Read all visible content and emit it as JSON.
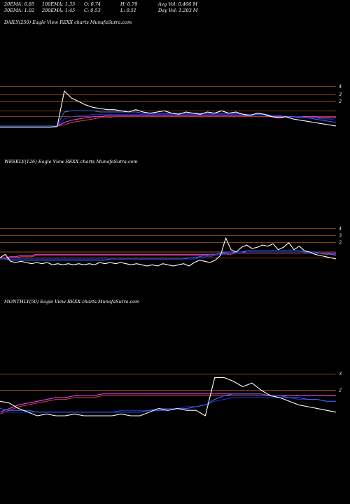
{
  "header": {
    "row1": [
      "20EMA: 0.85",
      "100EMA: 1.35",
      "O: 0.74",
      "H: 0.79",
      "Avg Vol: 0.466  M"
    ],
    "row2": [
      "30EMA: 1.02",
      "200EMA: 1.45",
      "C: 0.53",
      "L: 0.51",
      "Day Vol: 1.203 M"
    ]
  },
  "panels": {
    "daily": {
      "title": "DAILY(250) Eagle   View  REXX  charts MunafaSutra.com"
    },
    "weekly": {
      "title": "WEEKLY(126) Eagle   View  REXX  charts MunafaSutra.com"
    },
    "monthly": {
      "title": "MONTHLY(50) Eagle   View  REXX  charts MunafaSutra.com"
    }
  },
  "colors": {
    "price": "#ffffff",
    "ema_a": "#3a6cff",
    "ema_b": "#2233cc",
    "ema_c": "#ff44ff",
    "ema_d": "#cc4444",
    "hline": "#cc6622"
  },
  "chart_data": [
    {
      "type": "line",
      "title": "DAILY(250) Eagle   View  REXX  charts MunafaSutra.com",
      "yticks": [
        "4",
        "3",
        "2"
      ],
      "ylim": [
        0,
        6
      ],
      "hlines": [
        4.6,
        3.9,
        3.3,
        2.5,
        2.0
      ],
      "series": [
        {
          "role": "price",
          "values": [
            1.1,
            1.1,
            1.1,
            1.1,
            1.1,
            1.1,
            1.1,
            1.1,
            1.15,
            4.2,
            3.6,
            3.3,
            3.0,
            2.8,
            2.7,
            2.6,
            2.6,
            2.5,
            2.4,
            2.6,
            2.4,
            2.3,
            2.4,
            2.5,
            2.3,
            2.2,
            2.4,
            2.3,
            2.2,
            2.4,
            2.3,
            2.5,
            2.3,
            2.4,
            2.2,
            2.1,
            2.3,
            2.2,
            2.0,
            1.9,
            2.0,
            1.8,
            1.7,
            1.6,
            1.5,
            1.4,
            1.3,
            1.2
          ]
        },
        {
          "role": "ema_a",
          "values": [
            1.2,
            1.2,
            1.2,
            1.2,
            1.2,
            1.2,
            1.2,
            1.2,
            1.2,
            2.4,
            2.5,
            2.5,
            2.5,
            2.5,
            2.4,
            2.4,
            2.4,
            2.4,
            2.4,
            2.4,
            2.3,
            2.3,
            2.3,
            2.3,
            2.3,
            2.3,
            2.3,
            2.3,
            2.3,
            2.3,
            2.3,
            2.3,
            2.3,
            2.3,
            2.2,
            2.2,
            2.2,
            2.2,
            2.1,
            2.1,
            2.0,
            2.0,
            1.9,
            1.9,
            1.8,
            1.7,
            1.6,
            1.5
          ]
        },
        {
          "role": "ema_b",
          "values": [
            1.2,
            1.2,
            1.2,
            1.2,
            1.2,
            1.2,
            1.2,
            1.2,
            1.2,
            1.8,
            2.0,
            2.1,
            2.1,
            2.2,
            2.2,
            2.2,
            2.2,
            2.2,
            2.2,
            2.2,
            2.2,
            2.2,
            2.2,
            2.2,
            2.2,
            2.2,
            2.2,
            2.2,
            2.2,
            2.2,
            2.2,
            2.2,
            2.2,
            2.2,
            2.2,
            2.1,
            2.1,
            2.1,
            2.1,
            2.1,
            2.0,
            2.0,
            2.0,
            1.9,
            1.9,
            1.8,
            1.8,
            1.7
          ]
        },
        {
          "role": "ema_c",
          "values": [
            1.2,
            1.2,
            1.2,
            1.2,
            1.2,
            1.2,
            1.2,
            1.2,
            1.2,
            1.5,
            1.7,
            1.8,
            1.9,
            2.0,
            2.0,
            2.1,
            2.1,
            2.1,
            2.1,
            2.1,
            2.1,
            2.1,
            2.1,
            2.1,
            2.1,
            2.1,
            2.1,
            2.1,
            2.1,
            2.1,
            2.1,
            2.1,
            2.1,
            2.1,
            2.1,
            2.1,
            2.1,
            2.1,
            2.0,
            2.0,
            2.0,
            2.0,
            2.0,
            2.0,
            2.0,
            1.9,
            1.9,
            1.9
          ]
        },
        {
          "role": "ema_d",
          "values": [
            1.2,
            1.2,
            1.2,
            1.2,
            1.2,
            1.2,
            1.2,
            1.2,
            1.2,
            1.3,
            1.5,
            1.6,
            1.7,
            1.8,
            1.9,
            1.9,
            2.0,
            2.0,
            2.0,
            2.0,
            2.0,
            2.0,
            2.0,
            2.0,
            2.0,
            2.0,
            2.0,
            2.0,
            2.0,
            2.0,
            2.0,
            2.0,
            2.0,
            2.0,
            2.0,
            2.0,
            2.0,
            2.0,
            2.0,
            2.0,
            2.0,
            2.0,
            2.0,
            2.0,
            2.0,
            2.0,
            2.0,
            2.0
          ]
        }
      ]
    },
    {
      "type": "line",
      "title": "WEEKLY(126) Eagle   View  REXX  charts MunafaSutra.com",
      "yticks": [
        "4",
        "3",
        "2"
      ],
      "ylim": [
        0,
        6
      ],
      "hlines": [
        4.4,
        3.8,
        3.2,
        2.4,
        1.9
      ],
      "series": [
        {
          "role": "price",
          "values": [
            1.9,
            2.2,
            1.6,
            1.5,
            1.6,
            1.5,
            1.4,
            1.5,
            1.4,
            1.5,
            1.3,
            1.4,
            1.3,
            1.4,
            1.3,
            1.4,
            1.3,
            1.4,
            1.3,
            1.5,
            1.4,
            1.5,
            1.4,
            1.5,
            1.4,
            1.3,
            1.4,
            1.3,
            1.2,
            1.3,
            1.2,
            1.4,
            1.3,
            1.2,
            1.3,
            1.4,
            1.2,
            1.5,
            1.7,
            1.6,
            1.5,
            1.7,
            2.1,
            3.6,
            2.6,
            2.4,
            2.8,
            3.0,
            2.7,
            2.8,
            3.0,
            2.9,
            3.1,
            2.6,
            2.8,
            3.2,
            2.6,
            2.9,
            2.5,
            2.4,
            2.2,
            2.1,
            2.0,
            1.9,
            1.8
          ]
        },
        {
          "role": "ema_a",
          "values": [
            1.8,
            1.8,
            1.7,
            1.7,
            1.7,
            1.7,
            1.7,
            1.7,
            1.7,
            1.7,
            1.7,
            1.7,
            1.7,
            1.7,
            1.7,
            1.7,
            1.7,
            1.7,
            1.7,
            1.7,
            1.7,
            1.8,
            1.8,
            1.8,
            1.8,
            1.8,
            1.8,
            1.8,
            1.8,
            1.8,
            1.8,
            1.8,
            1.8,
            1.8,
            1.8,
            1.8,
            1.9,
            1.9,
            2.0,
            2.1,
            2.2,
            2.2,
            2.3,
            2.4,
            2.4,
            2.4,
            2.4,
            2.5,
            2.5,
            2.5,
            2.5,
            2.5,
            2.5,
            2.5,
            2.5,
            2.5,
            2.5,
            2.5,
            2.4,
            2.4,
            2.4,
            2.3,
            2.3,
            2.2,
            2.1
          ]
        },
        {
          "role": "ema_b",
          "values": [
            1.8,
            1.8,
            1.8,
            1.8,
            1.8,
            1.8,
            1.8,
            1.8,
            1.8,
            1.8,
            1.8,
            1.8,
            1.8,
            1.8,
            1.8,
            1.8,
            1.8,
            1.8,
            1.8,
            1.8,
            1.8,
            1.8,
            1.8,
            1.8,
            1.8,
            1.8,
            1.8,
            1.8,
            1.8,
            1.8,
            1.8,
            1.8,
            1.8,
            1.8,
            1.8,
            1.8,
            1.8,
            1.8,
            1.9,
            2.0,
            2.0,
            2.1,
            2.2,
            2.2,
            2.3,
            2.3,
            2.3,
            2.4,
            2.4,
            2.4,
            2.4,
            2.4,
            2.4,
            2.4,
            2.4,
            2.4,
            2.4,
            2.4,
            2.4,
            2.3,
            2.3,
            2.3,
            2.3,
            2.2,
            2.2
          ]
        },
        {
          "role": "ema_c",
          "values": [
            1.9,
            1.9,
            2.0,
            2.0,
            2.1,
            2.1,
            2.1,
            2.2,
            2.2,
            2.2,
            2.2,
            2.2,
            2.2,
            2.2,
            2.2,
            2.2,
            2.2,
            2.2,
            2.2,
            2.2,
            2.2,
            2.2,
            2.2,
            2.2,
            2.2,
            2.2,
            2.2,
            2.2,
            2.2,
            2.2,
            2.2,
            2.2,
            2.2,
            2.2,
            2.2,
            2.2,
            2.2,
            2.2,
            2.2,
            2.2,
            2.2,
            2.2,
            2.3,
            2.3,
            2.3,
            2.4,
            2.4,
            2.4,
            2.4,
            2.4,
            2.4,
            2.4,
            2.4,
            2.4,
            2.4,
            2.4,
            2.4,
            2.4,
            2.4,
            2.3,
            2.3,
            2.3,
            2.3,
            2.3,
            2.3
          ]
        },
        {
          "role": "ema_d",
          "values": [
            1.8,
            1.8,
            1.9,
            1.9,
            2.0,
            2.0,
            2.0,
            2.1,
            2.1,
            2.1,
            2.1,
            2.1,
            2.1,
            2.1,
            2.1,
            2.1,
            2.1,
            2.1,
            2.1,
            2.1,
            2.1,
            2.1,
            2.1,
            2.1,
            2.1,
            2.1,
            2.1,
            2.1,
            2.1,
            2.1,
            2.1,
            2.1,
            2.1,
            2.1,
            2.1,
            2.1,
            2.1,
            2.1,
            2.1,
            2.1,
            2.1,
            2.1,
            2.2,
            2.2,
            2.2,
            2.3,
            2.3,
            2.3,
            2.3,
            2.3,
            2.3,
            2.3,
            2.3,
            2.3,
            2.3,
            2.3,
            2.3,
            2.3,
            2.3,
            2.3,
            2.3,
            2.3,
            2.2,
            2.2,
            2.2
          ]
        }
      ]
    },
    {
      "type": "line",
      "title": "MONTHLY(50) Eagle   View  REXX  charts MunafaSutra.com",
      "yticks": [
        "3",
        "2"
      ],
      "ylim": [
        0,
        5
      ],
      "hlines": [
        3.3,
        2.4
      ],
      "series": [
        {
          "role": "price",
          "values": [
            1.8,
            1.7,
            1.4,
            1.2,
            1.0,
            1.1,
            1.0,
            1.0,
            1.1,
            1.0,
            1.0,
            1.0,
            1.0,
            1.1,
            1.0,
            1.0,
            1.2,
            1.4,
            1.3,
            1.4,
            1.3,
            1.3,
            1.0,
            3.1,
            3.1,
            2.9,
            2.6,
            2.8,
            2.4,
            2.1,
            2.0,
            1.8,
            1.6,
            1.5,
            1.4,
            1.3,
            1.2
          ]
        },
        {
          "role": "ema_a",
          "values": [
            1.4,
            1.3,
            1.3,
            1.3,
            1.2,
            1.2,
            1.2,
            1.2,
            1.2,
            1.2,
            1.2,
            1.2,
            1.2,
            1.2,
            1.2,
            1.2,
            1.3,
            1.3,
            1.3,
            1.4,
            1.4,
            1.5,
            1.6,
            1.9,
            2.1,
            2.2,
            2.2,
            2.2,
            2.2,
            2.1,
            2.1,
            2.0,
            2.0,
            1.9,
            1.9,
            1.8,
            1.8
          ]
        },
        {
          "role": "ema_b",
          "values": [
            1.2,
            1.2,
            1.2,
            1.2,
            1.2,
            1.2,
            1.2,
            1.2,
            1.2,
            1.2,
            1.2,
            1.2,
            1.2,
            1.3,
            1.3,
            1.3,
            1.3,
            1.4,
            1.4,
            1.4,
            1.5,
            1.5,
            1.6,
            1.8,
            1.9,
            2.0,
            2.0,
            2.0,
            2.0,
            2.0,
            2.0,
            2.0,
            1.9,
            1.9,
            1.9,
            1.8,
            1.8
          ]
        },
        {
          "role": "ema_c",
          "values": [
            1.2,
            1.4,
            1.6,
            1.7,
            1.8,
            1.9,
            2.0,
            2.0,
            2.1,
            2.1,
            2.1,
            2.2,
            2.2,
            2.2,
            2.2,
            2.2,
            2.2,
            2.2,
            2.2,
            2.2,
            2.2,
            2.2,
            2.2,
            2.2,
            2.2,
            2.2,
            2.2,
            2.2,
            2.2,
            2.1,
            2.1,
            2.1,
            2.1,
            2.1,
            2.1,
            2.1,
            2.1
          ]
        },
        {
          "role": "ema_d",
          "values": [
            1.1,
            1.3,
            1.5,
            1.6,
            1.7,
            1.8,
            1.9,
            1.9,
            2.0,
            2.0,
            2.0,
            2.1,
            2.1,
            2.1,
            2.1,
            2.1,
            2.1,
            2.1,
            2.1,
            2.1,
            2.1,
            2.1,
            2.1,
            2.1,
            2.1,
            2.1,
            2.1,
            2.1,
            2.1,
            2.1,
            2.1,
            2.1,
            2.1,
            2.1,
            2.1,
            2.1,
            2.1
          ]
        }
      ]
    }
  ]
}
